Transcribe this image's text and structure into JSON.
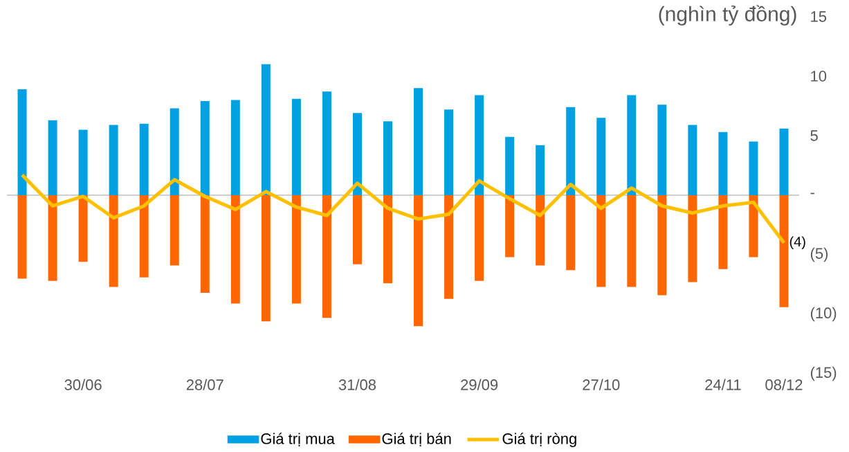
{
  "chart_data": {
    "type": "bar",
    "title": "(nghìn tỷ đồng)",
    "categories": [
      null,
      null,
      "30/06",
      null,
      null,
      null,
      "28/07",
      null,
      null,
      null,
      null,
      "31/08",
      null,
      null,
      null,
      "29/09",
      null,
      null,
      null,
      "27/10",
      null,
      null,
      null,
      "24/11",
      null,
      "08/12"
    ],
    "series": [
      {
        "name": "Giá trị mua",
        "color": "#00a0e3",
        "values": [
          8.9,
          6.3,
          5.5,
          5.9,
          6.0,
          7.3,
          7.9,
          8.0,
          11.0,
          8.1,
          8.7,
          6.9,
          6.2,
          9.0,
          7.2,
          8.4,
          4.9,
          4.2,
          7.4,
          6.5,
          8.4,
          7.6,
          5.9,
          5.3,
          4.5,
          5.6
        ]
      },
      {
        "name": "Giá trị bán",
        "color": "#ff6600",
        "values": [
          -7.0,
          -7.2,
          -5.6,
          -7.7,
          -6.9,
          -5.9,
          -8.2,
          -9.1,
          -10.6,
          -9.1,
          -10.3,
          -5.8,
          -7.4,
          -11.0,
          -8.7,
          -7.2,
          -5.2,
          -5.9,
          -6.3,
          -7.7,
          -7.7,
          -8.4,
          -7.3,
          -6.2,
          -5.2,
          -9.4
        ]
      },
      {
        "name": "Giá trị ròng",
        "type": "line",
        "color": "#ffc000",
        "values": [
          1.7,
          -0.9,
          -0.1,
          -1.9,
          -0.9,
          1.3,
          -0.1,
          -1.2,
          0.3,
          -1.0,
          -1.7,
          1.0,
          -1.1,
          -2.0,
          -1.6,
          1.2,
          -0.3,
          -1.7,
          0.9,
          -1.1,
          0.6,
          -0.9,
          -1.5,
          -0.9,
          -0.6,
          -4
        ],
        "value_labels": [
          null,
          null,
          null,
          null,
          null,
          null,
          null,
          null,
          null,
          null,
          null,
          null,
          null,
          null,
          null,
          null,
          null,
          null,
          null,
          null,
          null,
          null,
          null,
          null,
          null,
          "(4)"
        ]
      }
    ],
    "stacked": true,
    "ylim": [
      -15,
      15
    ],
    "yticks": [
      15,
      10,
      5,
      {
        "value": 0,
        "label": "-"
      },
      {
        "value": -5,
        "label": "(5)"
      },
      {
        "value": -10,
        "label": "(10)"
      },
      {
        "value": -15,
        "label": "(15)"
      }
    ],
    "legend": "bottom"
  }
}
